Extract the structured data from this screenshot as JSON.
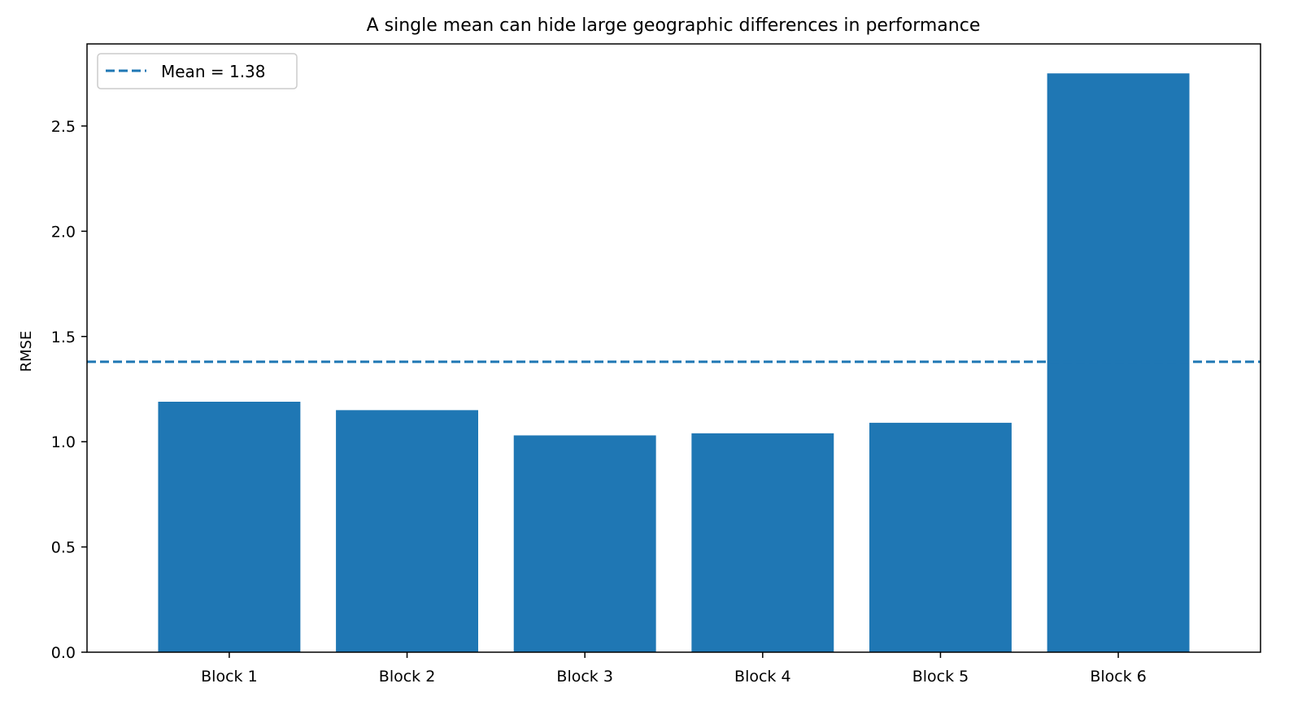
{
  "chart_data": {
    "type": "bar",
    "title": "A single mean can hide large geographic differences in performance",
    "xlabel": "",
    "ylabel": "RMSE",
    "categories": [
      "Block 1",
      "Block 2",
      "Block 3",
      "Block 4",
      "Block 5",
      "Block 6"
    ],
    "values": [
      1.19,
      1.15,
      1.03,
      1.04,
      1.09,
      2.75
    ],
    "ylim": [
      0,
      2.89
    ],
    "yticks": [
      0.0,
      0.5,
      1.0,
      1.5,
      2.0,
      2.5
    ],
    "ytick_labels": [
      "0.0",
      "0.5",
      "1.0",
      "1.5",
      "2.0",
      "2.5"
    ],
    "bar_color": "#1f77b4",
    "mean_line": {
      "value": 1.38,
      "label": "Mean = 1.38",
      "color": "#1f77b4",
      "style": "dashed"
    },
    "legend_position": "top-left",
    "grid": false
  }
}
